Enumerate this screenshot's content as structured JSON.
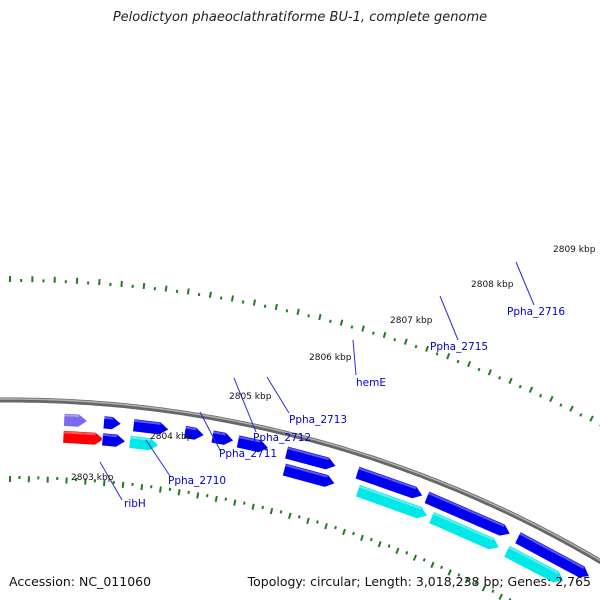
{
  "title": "Pelodictyon phaeoclathratiforme BU-1, complete genome",
  "footer": {
    "accession": "Accession: NC_011060",
    "summary": "Topology: circular; Length: 3,018,238 bp; Genes: 2,765"
  },
  "colors": {
    "gene_forward": "#0000ee",
    "gene_reverse": "#00e8e8",
    "gene_other_purple": "#7b68ee",
    "gene_other_red": "#ff0000",
    "backbone": "#808080",
    "tick": "#1e7b1e",
    "label_gene": "#0000cc",
    "label_kbp": "#111111"
  },
  "kbp_labels": [
    "2803 kbp",
    "2804 kbp",
    "2805 kbp",
    "2806 kbp",
    "2807 kbp",
    "2808 kbp",
    "2809 kbp"
  ],
  "gene_labels": [
    "ribH",
    "Ppha_2710",
    "Ppha_2711",
    "Ppha_2712",
    "Ppha_2713",
    "hemE",
    "Ppha_2715",
    "Ppha_2716"
  ]
}
